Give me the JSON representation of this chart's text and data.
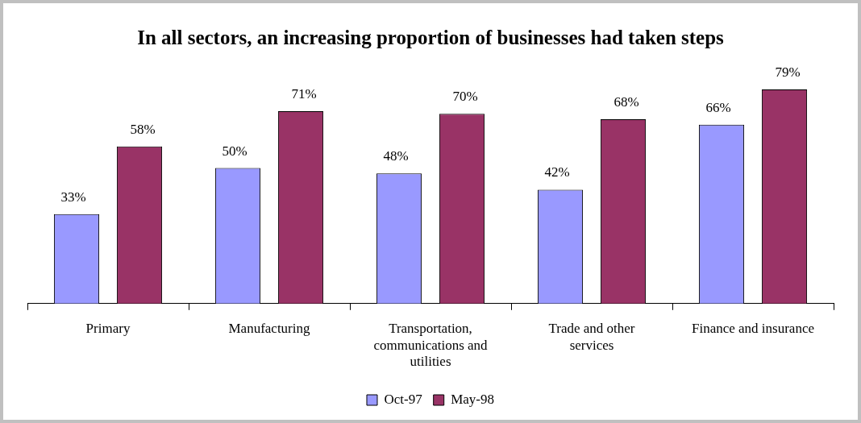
{
  "chart_data": {
    "type": "bar",
    "title": "In all sectors, an increasing proportion of businesses had taken steps",
    "categories": [
      "Primary",
      "Manufacturing",
      "Transportation, communications and utilities",
      "Trade and other services",
      "Finance and insurance"
    ],
    "series": [
      {
        "name": "Oct-97",
        "color": "#9999ff",
        "values": [
          33,
          50,
          48,
          42,
          66
        ],
        "value_labels": [
          "33%",
          "50%",
          "48%",
          "42%",
          "66%"
        ]
      },
      {
        "name": "May-98",
        "color": "#993366",
        "values": [
          58,
          71,
          70,
          68,
          79
        ],
        "value_labels": [
          "58%",
          "71%",
          "70%",
          "68%",
          "79%"
        ]
      }
    ],
    "legend": "bottom",
    "grid": false
  }
}
